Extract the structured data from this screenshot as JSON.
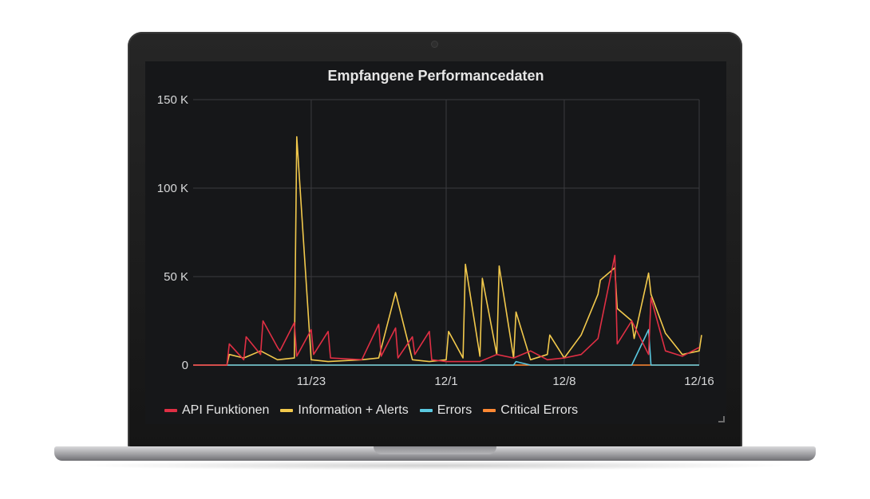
{
  "panel": {
    "title": "Empfangene Performancedaten"
  },
  "chart_data": {
    "type": "line",
    "title": "Empfangene Performancedaten",
    "xlabel": "",
    "ylabel": "",
    "ylim": [
      0,
      150000
    ],
    "grid": true,
    "legend_position": "bottom-left",
    "y_ticks": [
      {
        "value": 0,
        "label": "0"
      },
      {
        "value": 50000,
        "label": "50 K"
      },
      {
        "value": 100000,
        "label": "100 K"
      },
      {
        "value": 150000,
        "label": "150 K"
      }
    ],
    "x_range": [
      "11/16",
      "12/16"
    ],
    "x_ticks": [
      {
        "value": "11/23",
        "label": "11/23"
      },
      {
        "value": "12/1",
        "label": "12/1"
      },
      {
        "value": "12/8",
        "label": "12/8"
      },
      {
        "value": "12/16",
        "label": "12/16"
      }
    ],
    "series": [
      {
        "name": "API Funktionen",
        "color": "#e02f44",
        "points": [
          [
            "11/16",
            0
          ],
          [
            "11/18",
            0
          ],
          [
            "11/18",
            12000
          ],
          [
            "11/19",
            3000
          ],
          [
            "11/19",
            16000
          ],
          [
            "11/20",
            6000
          ],
          [
            "11/20",
            25000
          ],
          [
            "11/21",
            10000
          ],
          [
            "11/21",
            8000
          ],
          [
            "11/22",
            24000
          ],
          [
            "11/22",
            5000
          ],
          [
            "11/23",
            20000
          ],
          [
            "11/23",
            6000
          ],
          [
            "11/24",
            19000
          ],
          [
            "11/24",
            4000
          ],
          [
            "11/26",
            3000
          ],
          [
            "11/27",
            23000
          ],
          [
            "11/27",
            5000
          ],
          [
            "11/28",
            21000
          ],
          [
            "11/28",
            4000
          ],
          [
            "11/29",
            16000
          ],
          [
            "11/29",
            6000
          ],
          [
            "11/30",
            19000
          ],
          [
            "11/30",
            3000
          ],
          [
            "12/1",
            2000
          ],
          [
            "12/3",
            2000
          ],
          [
            "12/4",
            6000
          ],
          [
            "12/5",
            4000
          ],
          [
            "12/6",
            8000
          ],
          [
            "12/7",
            3000
          ],
          [
            "12/8",
            4000
          ],
          [
            "12/9",
            6000
          ],
          [
            "12/10",
            15000
          ],
          [
            "12/11",
            62000
          ],
          [
            "12/11",
            12000
          ],
          [
            "12/12",
            25000
          ],
          [
            "12/13",
            6000
          ],
          [
            "12/13",
            38000
          ],
          [
            "12/14",
            8000
          ],
          [
            "12/15",
            5000
          ],
          [
            "12/16",
            10000
          ]
        ]
      },
      {
        "name": "Information + Alerts",
        "color": "#f2c94c",
        "points": [
          [
            "11/16",
            0
          ],
          [
            "11/18",
            0
          ],
          [
            "11/18",
            6000
          ],
          [
            "11/19",
            4000
          ],
          [
            "11/20",
            8000
          ],
          [
            "11/21",
            3000
          ],
          [
            "11/22",
            4000
          ],
          [
            "11/22",
            129000
          ],
          [
            "11/23",
            3000
          ],
          [
            "11/24",
            2000
          ],
          [
            "11/26",
            3000
          ],
          [
            "11/27",
            4000
          ],
          [
            "11/28",
            41000
          ],
          [
            "11/29",
            3000
          ],
          [
            "11/30",
            2000
          ],
          [
            "12/1",
            3000
          ],
          [
            "12/1",
            19000
          ],
          [
            "12/2",
            4000
          ],
          [
            "12/2",
            57000
          ],
          [
            "12/3",
            5000
          ],
          [
            "12/3",
            49000
          ],
          [
            "12/4",
            6000
          ],
          [
            "12/4",
            56000
          ],
          [
            "12/5",
            4000
          ],
          [
            "12/5",
            30000
          ],
          [
            "12/6",
            3000
          ],
          [
            "12/7",
            6000
          ],
          [
            "12/7",
            17000
          ],
          [
            "12/8",
            4000
          ],
          [
            "12/9",
            17000
          ],
          [
            "12/10",
            40000
          ],
          [
            "12/10",
            48000
          ],
          [
            "12/11",
            55000
          ],
          [
            "12/11",
            32000
          ],
          [
            "12/12",
            25000
          ],
          [
            "12/12",
            15000
          ],
          [
            "12/13",
            52000
          ],
          [
            "12/13",
            40000
          ],
          [
            "12/14",
            18000
          ],
          [
            "12/15",
            6000
          ],
          [
            "12/16",
            8000
          ],
          [
            "12/16",
            17000
          ]
        ]
      },
      {
        "name": "Errors",
        "color": "#5ac8e0",
        "points": [
          [
            "11/16",
            0
          ],
          [
            "12/5",
            0
          ],
          [
            "12/5",
            2000
          ],
          [
            "12/6",
            0
          ],
          [
            "12/12",
            0
          ],
          [
            "12/13",
            20000
          ],
          [
            "12/13",
            0
          ],
          [
            "12/16",
            0
          ]
        ]
      },
      {
        "name": "Critical Errors",
        "color": "#ff8833",
        "points": [
          [
            "11/16",
            0
          ],
          [
            "12/16",
            0
          ]
        ]
      }
    ]
  }
}
